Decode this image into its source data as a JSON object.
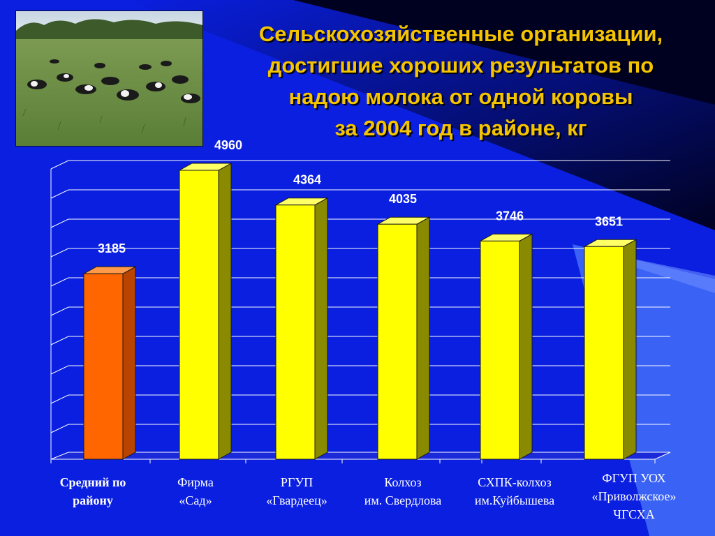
{
  "title": {
    "lines": [
      "Сельскохозяйственные организации,",
      "достигшие хороших результатов по",
      "надою молока от одной коровы",
      "за 2004 год в районе, кг"
    ]
  },
  "colors": {
    "background": "#0a1fe0",
    "title": "#f5c400",
    "bar_highlight": "#ff6600",
    "bar_normal": "#ffff00",
    "gridline": "#ffffff"
  },
  "photo": {
    "icon": "cows-pasture-photo"
  },
  "chart_data": {
    "type": "bar",
    "title": "Сельскохозяйственные организации, достигшие хороших результатов по надою молока от одной коровы за 2004 год в районе, кг",
    "categories": [
      [
        "Средний по",
        "району"
      ],
      [
        "Фирма",
        "«Сад»"
      ],
      [
        "РГУП",
        "«Гвардеец»"
      ],
      [
        "Колхоз",
        "им. Свердлова"
      ],
      [
        "СХПК-колхоз",
        "им.Куйбышева"
      ],
      [
        "ФГУП УОХ",
        "«Приволжское»",
        "ЧГСХА"
      ]
    ],
    "values": [
      3185,
      4960,
      4364,
      4035,
      3746,
      3651
    ],
    "value_labels": [
      "3185",
      "4960",
      "4364",
      "4035",
      "3746",
      "3651"
    ],
    "highlight_index": 0,
    "ylim": [
      0,
      5000
    ],
    "grid": true,
    "legend": "none",
    "xlabel": "",
    "ylabel": ""
  }
}
